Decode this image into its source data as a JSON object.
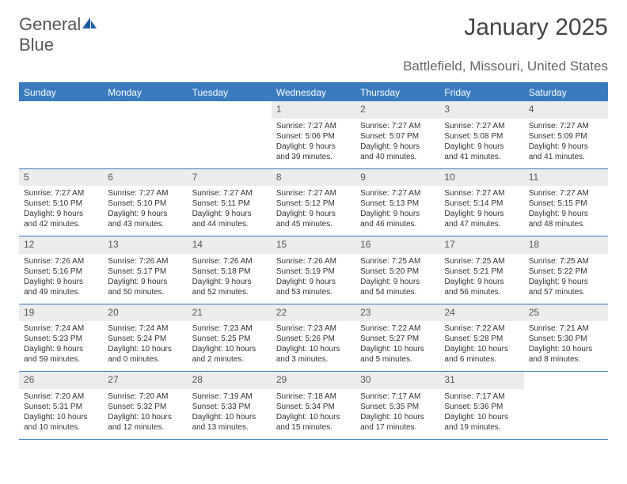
{
  "logo": {
    "word1": "General",
    "word2": "Blue"
  },
  "title": "January 2025",
  "location": "Battlefield, Missouri, United States",
  "colors": {
    "header_bg": "#3a7bbf",
    "header_text": "#ffffff",
    "daynum_bg": "#ececec",
    "daynum_text": "#555555",
    "body_text": "#333333",
    "rule": "#3a7bbf",
    "logo_gray": "#555555",
    "logo_blue": "#1a5ca3"
  },
  "weekdays": [
    "Sunday",
    "Monday",
    "Tuesday",
    "Wednesday",
    "Thursday",
    "Friday",
    "Saturday"
  ],
  "weeks": [
    [
      {
        "n": "",
        "sr": "",
        "ss": "",
        "dl": ""
      },
      {
        "n": "",
        "sr": "",
        "ss": "",
        "dl": ""
      },
      {
        "n": "",
        "sr": "",
        "ss": "",
        "dl": ""
      },
      {
        "n": "1",
        "sr": "Sunrise: 7:27 AM",
        "ss": "Sunset: 5:06 PM",
        "dl": "Daylight: 9 hours and 39 minutes."
      },
      {
        "n": "2",
        "sr": "Sunrise: 7:27 AM",
        "ss": "Sunset: 5:07 PM",
        "dl": "Daylight: 9 hours and 40 minutes."
      },
      {
        "n": "3",
        "sr": "Sunrise: 7:27 AM",
        "ss": "Sunset: 5:08 PM",
        "dl": "Daylight: 9 hours and 41 minutes."
      },
      {
        "n": "4",
        "sr": "Sunrise: 7:27 AM",
        "ss": "Sunset: 5:09 PM",
        "dl": "Daylight: 9 hours and 41 minutes."
      }
    ],
    [
      {
        "n": "5",
        "sr": "Sunrise: 7:27 AM",
        "ss": "Sunset: 5:10 PM",
        "dl": "Daylight: 9 hours and 42 minutes."
      },
      {
        "n": "6",
        "sr": "Sunrise: 7:27 AM",
        "ss": "Sunset: 5:10 PM",
        "dl": "Daylight: 9 hours and 43 minutes."
      },
      {
        "n": "7",
        "sr": "Sunrise: 7:27 AM",
        "ss": "Sunset: 5:11 PM",
        "dl": "Daylight: 9 hours and 44 minutes."
      },
      {
        "n": "8",
        "sr": "Sunrise: 7:27 AM",
        "ss": "Sunset: 5:12 PM",
        "dl": "Daylight: 9 hours and 45 minutes."
      },
      {
        "n": "9",
        "sr": "Sunrise: 7:27 AM",
        "ss": "Sunset: 5:13 PM",
        "dl": "Daylight: 9 hours and 46 minutes."
      },
      {
        "n": "10",
        "sr": "Sunrise: 7:27 AM",
        "ss": "Sunset: 5:14 PM",
        "dl": "Daylight: 9 hours and 47 minutes."
      },
      {
        "n": "11",
        "sr": "Sunrise: 7:27 AM",
        "ss": "Sunset: 5:15 PM",
        "dl": "Daylight: 9 hours and 48 minutes."
      }
    ],
    [
      {
        "n": "12",
        "sr": "Sunrise: 7:26 AM",
        "ss": "Sunset: 5:16 PM",
        "dl": "Daylight: 9 hours and 49 minutes."
      },
      {
        "n": "13",
        "sr": "Sunrise: 7:26 AM",
        "ss": "Sunset: 5:17 PM",
        "dl": "Daylight: 9 hours and 50 minutes."
      },
      {
        "n": "14",
        "sr": "Sunrise: 7:26 AM",
        "ss": "Sunset: 5:18 PM",
        "dl": "Daylight: 9 hours and 52 minutes."
      },
      {
        "n": "15",
        "sr": "Sunrise: 7:26 AM",
        "ss": "Sunset: 5:19 PM",
        "dl": "Daylight: 9 hours and 53 minutes."
      },
      {
        "n": "16",
        "sr": "Sunrise: 7:25 AM",
        "ss": "Sunset: 5:20 PM",
        "dl": "Daylight: 9 hours and 54 minutes."
      },
      {
        "n": "17",
        "sr": "Sunrise: 7:25 AM",
        "ss": "Sunset: 5:21 PM",
        "dl": "Daylight: 9 hours and 56 minutes."
      },
      {
        "n": "18",
        "sr": "Sunrise: 7:25 AM",
        "ss": "Sunset: 5:22 PM",
        "dl": "Daylight: 9 hours and 57 minutes."
      }
    ],
    [
      {
        "n": "19",
        "sr": "Sunrise: 7:24 AM",
        "ss": "Sunset: 5:23 PM",
        "dl": "Daylight: 9 hours and 59 minutes."
      },
      {
        "n": "20",
        "sr": "Sunrise: 7:24 AM",
        "ss": "Sunset: 5:24 PM",
        "dl": "Daylight: 10 hours and 0 minutes."
      },
      {
        "n": "21",
        "sr": "Sunrise: 7:23 AM",
        "ss": "Sunset: 5:25 PM",
        "dl": "Daylight: 10 hours and 2 minutes."
      },
      {
        "n": "22",
        "sr": "Sunrise: 7:23 AM",
        "ss": "Sunset: 5:26 PM",
        "dl": "Daylight: 10 hours and 3 minutes."
      },
      {
        "n": "23",
        "sr": "Sunrise: 7:22 AM",
        "ss": "Sunset: 5:27 PM",
        "dl": "Daylight: 10 hours and 5 minutes."
      },
      {
        "n": "24",
        "sr": "Sunrise: 7:22 AM",
        "ss": "Sunset: 5:28 PM",
        "dl": "Daylight: 10 hours and 6 minutes."
      },
      {
        "n": "25",
        "sr": "Sunrise: 7:21 AM",
        "ss": "Sunset: 5:30 PM",
        "dl": "Daylight: 10 hours and 8 minutes."
      }
    ],
    [
      {
        "n": "26",
        "sr": "Sunrise: 7:20 AM",
        "ss": "Sunset: 5:31 PM",
        "dl": "Daylight: 10 hours and 10 minutes."
      },
      {
        "n": "27",
        "sr": "Sunrise: 7:20 AM",
        "ss": "Sunset: 5:32 PM",
        "dl": "Daylight: 10 hours and 12 minutes."
      },
      {
        "n": "28",
        "sr": "Sunrise: 7:19 AM",
        "ss": "Sunset: 5:33 PM",
        "dl": "Daylight: 10 hours and 13 minutes."
      },
      {
        "n": "29",
        "sr": "Sunrise: 7:18 AM",
        "ss": "Sunset: 5:34 PM",
        "dl": "Daylight: 10 hours and 15 minutes."
      },
      {
        "n": "30",
        "sr": "Sunrise: 7:17 AM",
        "ss": "Sunset: 5:35 PM",
        "dl": "Daylight: 10 hours and 17 minutes."
      },
      {
        "n": "31",
        "sr": "Sunrise: 7:17 AM",
        "ss": "Sunset: 5:36 PM",
        "dl": "Daylight: 10 hours and 19 minutes."
      },
      {
        "n": "",
        "sr": "",
        "ss": "",
        "dl": ""
      }
    ]
  ]
}
